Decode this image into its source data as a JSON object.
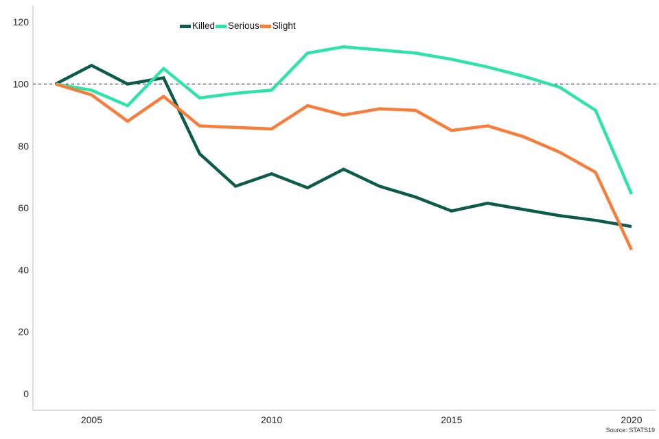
{
  "chart": {
    "source_label": "Source: STATS19",
    "axis_color": "#c9c9c9",
    "reference_line_color": "#000000",
    "tick_label_color": "#262626"
  },
  "chart_data": {
    "type": "line",
    "title": "",
    "xlabel": "",
    "ylabel": "",
    "x": [
      2004,
      2005,
      2006,
      2007,
      2008,
      2009,
      2010,
      2011,
      2012,
      2013,
      2014,
      2015,
      2016,
      2017,
      2018,
      2019,
      2020
    ],
    "series": [
      {
        "name": "Killed",
        "color": "#0d5c4b",
        "values": [
          100,
          106,
          100,
          102,
          77.5,
          67,
          71,
          66.5,
          72.5,
          67,
          63.5,
          59,
          61.5,
          59.5,
          57.5,
          56,
          54
        ]
      },
      {
        "name": "Serious",
        "color": "#2ee3a9",
        "values": [
          100,
          98,
          93,
          105,
          95.5,
          97,
          98,
          110,
          112,
          111,
          110,
          108,
          105.5,
          102.5,
          99,
          91.5,
          64.5
        ]
      },
      {
        "name": "Slight",
        "color": "#f97d3a",
        "values": [
          100,
          96.5,
          88,
          96,
          86.5,
          86,
          85.5,
          93,
          90,
          92,
          91.5,
          85,
          86.5,
          83,
          78,
          71.5,
          46.5
        ]
      }
    ],
    "reference_line": 100,
    "ylim": [
      0,
      120
    ],
    "yticks": [
      0,
      20,
      40,
      60,
      80,
      100,
      120
    ],
    "xticks": [
      2005,
      2010,
      2015,
      2020
    ],
    "grid": false,
    "legend_position": "top",
    "source": "Source: STATS19"
  }
}
